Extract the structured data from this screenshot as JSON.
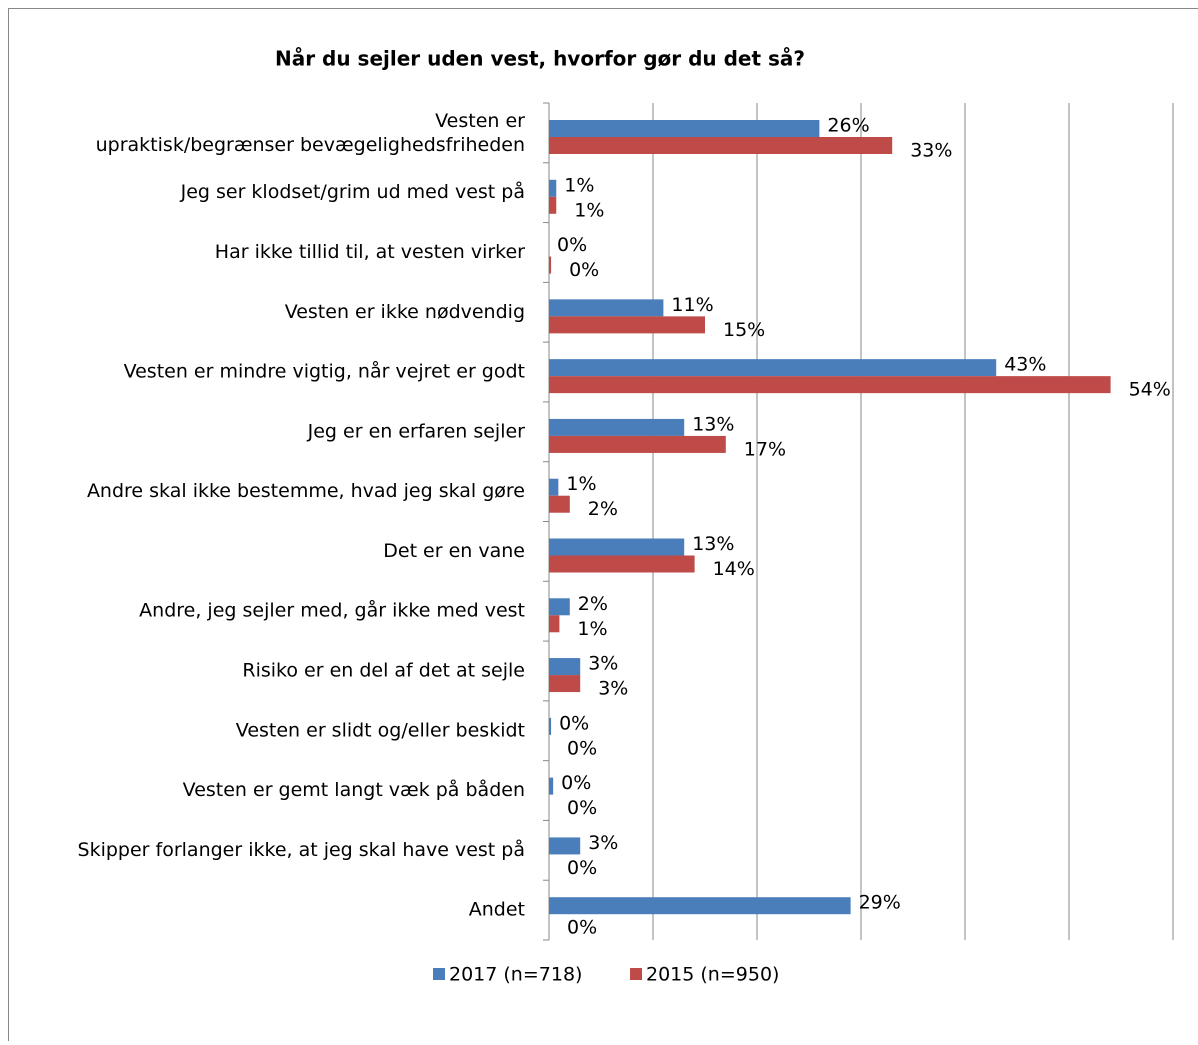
{
  "chart_data": {
    "type": "bar",
    "orientation": "horizontal",
    "title": "Når du sejler uden vest, hvorfor gør du det så?",
    "categories": [
      "Vesten er upraktisk/begrænser bevægelighedsfriheden",
      "Jeg ser klodset/grim ud med vest på",
      "Har ikke tillid til, at vesten virker",
      "Vesten er ikke nødvendig",
      "Vesten er mindre vigtig, når vejret er godt",
      "Jeg er en erfaren sejler",
      "Andre skal ikke bestemme, hvad jeg skal gøre",
      "Det er en vane",
      "Andre, jeg sejler med, går ikke med vest",
      "Risiko er en del af det at sejle",
      "Vesten er slidt og/eller beskidt",
      "Vesten er gemt langt væk på båden",
      "Skipper forlanger ikke, at jeg skal have vest på",
      "Andet"
    ],
    "series": [
      {
        "name": "2017 (n=718)",
        "color": "#4a7ebb",
        "values": [
          26,
          0.7,
          0,
          11,
          43,
          13,
          0.9,
          13,
          2,
          3,
          0.2,
          0.4,
          3,
          29
        ],
        "value_labels": [
          "26%",
          "1%",
          "0%",
          "11%",
          "43%",
          "13%",
          "1%",
          "13%",
          "2%",
          "3%",
          "0%",
          "0%",
          "3%",
          "29%"
        ]
      },
      {
        "name": "2015 (n=950)",
        "color": "#be4b48",
        "values": [
          33,
          0.7,
          0.2,
          15,
          54,
          17,
          2,
          14,
          1,
          3,
          0,
          0,
          0,
          0
        ],
        "value_labels": [
          "33%",
          "1%",
          "0%",
          "15%",
          "54%",
          "17%",
          "2%",
          "14%",
          "1%",
          "3%",
          "0%",
          "0%",
          "0%",
          "0%"
        ]
      }
    ],
    "xlim": [
      0,
      60
    ],
    "xticks": [
      0,
      10,
      20,
      30,
      40,
      50,
      60
    ],
    "grid": true,
    "legend": "bottom"
  }
}
